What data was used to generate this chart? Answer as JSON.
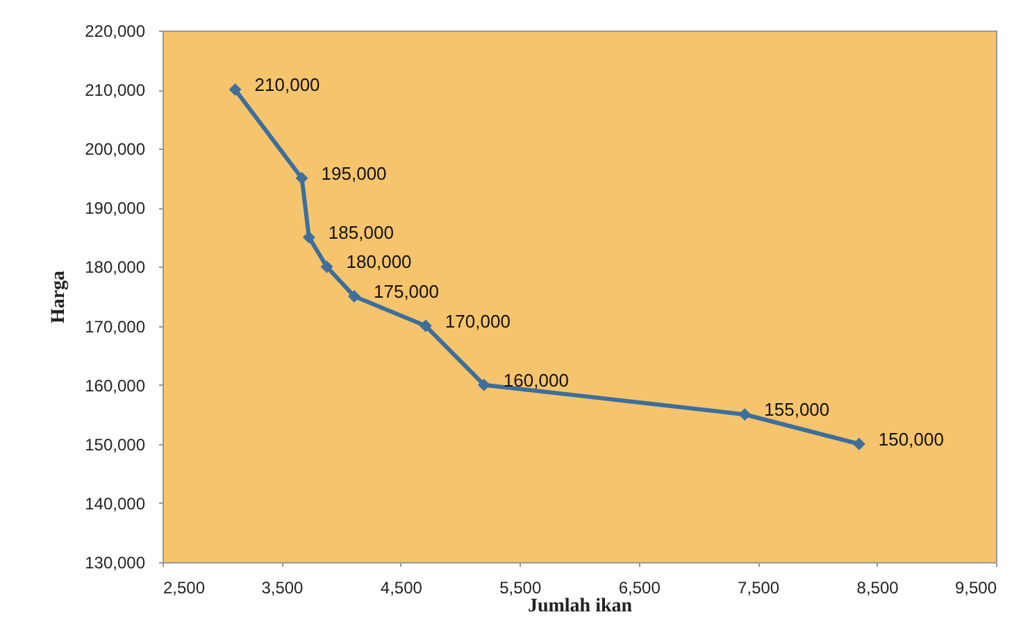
{
  "chart_data": {
    "type": "line",
    "xlabel": "Jumlah ikan",
    "ylabel": "Harga",
    "x": [
      3110,
      3670,
      3730,
      3880,
      4110,
      4710,
      5200,
      7390,
      8350
    ],
    "series": [
      {
        "color": "#3d6e9c",
        "values": [
          210000,
          195000,
          185000,
          180000,
          175000,
          170000,
          160000,
          155000,
          150000
        ],
        "value_labels": [
          "210,000",
          "195,000",
          "185,000",
          "180,000",
          "175,000",
          "170,000",
          "160,000",
          "155,000",
          "150,000"
        ]
      }
    ],
    "xlim": [
      2500,
      9500
    ],
    "xticks": [
      {
        "value": 2500,
        "label": "2,500"
      },
      {
        "value": 3500,
        "label": "3,500"
      },
      {
        "value": 4500,
        "label": "4,500"
      },
      {
        "value": 5500,
        "label": "5,500"
      },
      {
        "value": 6500,
        "label": "6,500"
      },
      {
        "value": 7500,
        "label": "7,500"
      },
      {
        "value": 8500,
        "label": "8,500"
      },
      {
        "value": 9500,
        "label": "9,500"
      }
    ],
    "ylim": [
      130000,
      220000
    ],
    "yticks": [
      {
        "value": 130000,
        "label": "130,000"
      },
      {
        "value": 140000,
        "label": "140,000"
      },
      {
        "value": 150000,
        "label": "150,000"
      },
      {
        "value": 160000,
        "label": "160,000"
      },
      {
        "value": 170000,
        "label": "170,000"
      },
      {
        "value": 180000,
        "label": "180,000"
      },
      {
        "value": 190000,
        "label": "190,000"
      },
      {
        "value": 200000,
        "label": "200,000"
      },
      {
        "value": 210000,
        "label": "210,000"
      },
      {
        "value": 220000,
        "label": "220,000"
      }
    ],
    "marker": "diamond"
  }
}
